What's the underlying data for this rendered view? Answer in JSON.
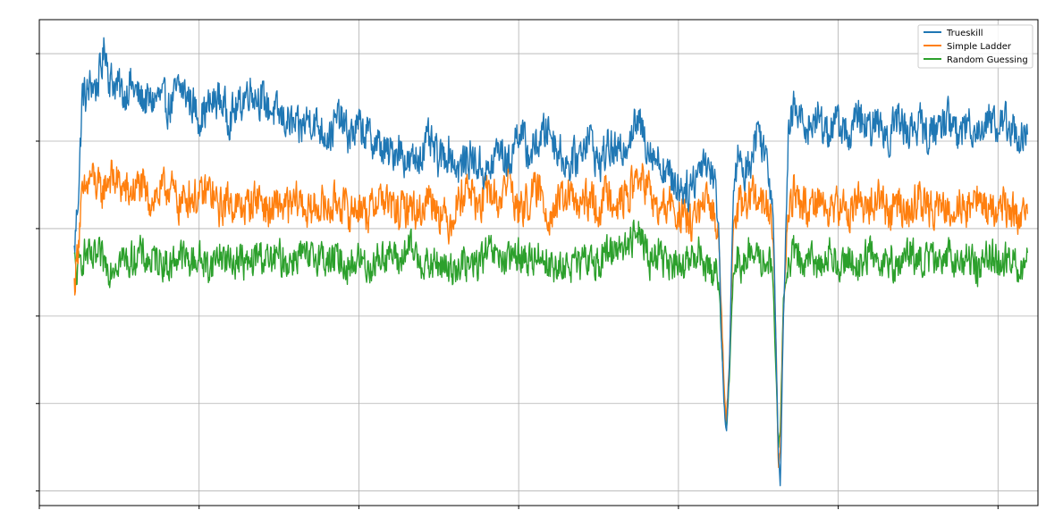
{
  "chart_data": {
    "type": "line",
    "title": "",
    "xlabel": "",
    "ylabel": "",
    "xlim": [
      0,
      1000
    ],
    "ylim": [
      0,
      100
    ],
    "grid": true,
    "legend_position": "top-right",
    "x_ticks": [
      0,
      160,
      320,
      480,
      640,
      800,
      960
    ],
    "y_ticks": [
      3,
      21,
      39,
      57,
      75,
      93
    ],
    "series": [
      {
        "name": "Trueskill",
        "color": "#1f77b4",
        "points": [
          [
            35,
            52
          ],
          [
            40,
            68
          ],
          [
            43,
            85
          ],
          [
            47,
            84
          ],
          [
            52,
            87
          ],
          [
            57,
            86
          ],
          [
            62,
            90
          ],
          [
            66,
            95
          ],
          [
            70,
            88
          ],
          [
            75,
            87
          ],
          [
            80,
            86
          ],
          [
            85,
            84
          ],
          [
            90,
            87
          ],
          [
            100,
            84
          ],
          [
            110,
            83
          ],
          [
            120,
            84
          ],
          [
            130,
            82
          ],
          [
            140,
            86
          ],
          [
            150,
            84
          ],
          [
            160,
            80
          ],
          [
            170,
            82
          ],
          [
            180,
            84
          ],
          [
            190,
            80
          ],
          [
            200,
            82
          ],
          [
            210,
            86
          ],
          [
            220,
            84
          ],
          [
            230,
            82
          ],
          [
            240,
            80
          ],
          [
            250,
            79
          ],
          [
            260,
            77
          ],
          [
            270,
            80
          ],
          [
            280,
            78
          ],
          [
            290,
            76
          ],
          [
            300,
            80
          ],
          [
            310,
            76
          ],
          [
            320,
            78
          ],
          [
            330,
            76
          ],
          [
            340,
            74
          ],
          [
            350,
            72
          ],
          [
            360,
            74
          ],
          [
            370,
            70
          ],
          [
            380,
            72
          ],
          [
            390,
            75
          ],
          [
            400,
            71
          ],
          [
            410,
            73
          ],
          [
            420,
            69
          ],
          [
            430,
            72
          ],
          [
            440,
            70
          ],
          [
            450,
            68
          ],
          [
            460,
            74
          ],
          [
            470,
            70
          ],
          [
            480,
            78
          ],
          [
            490,
            72
          ],
          [
            500,
            75
          ],
          [
            510,
            78
          ],
          [
            520,
            73
          ],
          [
            530,
            70
          ],
          [
            540,
            72
          ],
          [
            550,
            77
          ],
          [
            560,
            70
          ],
          [
            570,
            74
          ],
          [
            580,
            72
          ],
          [
            590,
            76
          ],
          [
            600,
            79
          ],
          [
            610,
            74
          ],
          [
            620,
            71
          ],
          [
            630,
            68
          ],
          [
            640,
            66
          ],
          [
            650,
            65
          ],
          [
            660,
            69
          ],
          [
            665,
            72
          ],
          [
            675,
            68
          ],
          [
            680,
            60
          ],
          [
            683,
            35
          ],
          [
            686,
            20
          ],
          [
            688,
            15
          ],
          [
            691,
            28
          ],
          [
            695,
            65
          ],
          [
            700,
            72
          ],
          [
            705,
            68
          ],
          [
            710,
            70
          ],
          [
            720,
            78
          ],
          [
            730,
            70
          ],
          [
            735,
            60
          ],
          [
            738,
            30
          ],
          [
            740,
            10
          ],
          [
            742,
            5
          ],
          [
            745,
            38
          ],
          [
            750,
            75
          ],
          [
            755,
            82
          ],
          [
            760,
            80
          ],
          [
            770,
            78
          ],
          [
            780,
            80
          ],
          [
            790,
            77
          ],
          [
            800,
            79
          ],
          [
            810,
            76
          ],
          [
            820,
            80
          ],
          [
            830,
            77
          ],
          [
            840,
            79
          ],
          [
            850,
            76
          ],
          [
            860,
            80
          ],
          [
            870,
            77
          ],
          [
            880,
            79
          ],
          [
            890,
            76
          ],
          [
            900,
            78
          ],
          [
            910,
            80
          ],
          [
            920,
            76
          ],
          [
            930,
            79
          ],
          [
            940,
            77
          ],
          [
            950,
            80
          ],
          [
            960,
            78
          ],
          [
            970,
            79
          ],
          [
            980,
            76
          ],
          [
            990,
            75
          ]
        ]
      },
      {
        "name": "Simple Ladder",
        "color": "#ff7f0e",
        "points": [
          [
            35,
            45
          ],
          [
            38,
            52
          ],
          [
            42,
            62
          ],
          [
            47,
            65
          ],
          [
            52,
            68
          ],
          [
            57,
            66
          ],
          [
            62,
            64
          ],
          [
            70,
            68
          ],
          [
            80,
            66
          ],
          [
            90,
            64
          ],
          [
            100,
            66
          ],
          [
            110,
            63
          ],
          [
            120,
            64
          ],
          [
            130,
            66
          ],
          [
            140,
            62
          ],
          [
            150,
            64
          ],
          [
            160,
            63
          ],
          [
            170,
            65
          ],
          [
            180,
            61
          ],
          [
            190,
            63
          ],
          [
            200,
            61
          ],
          [
            210,
            62
          ],
          [
            220,
            64
          ],
          [
            230,
            60
          ],
          [
            240,
            62
          ],
          [
            250,
            61
          ],
          [
            260,
            63
          ],
          [
            270,
            60
          ],
          [
            280,
            62
          ],
          [
            290,
            61
          ],
          [
            300,
            63
          ],
          [
            310,
            60
          ],
          [
            320,
            62
          ],
          [
            330,
            60
          ],
          [
            340,
            64
          ],
          [
            350,
            62
          ],
          [
            360,
            60
          ],
          [
            370,
            62
          ],
          [
            380,
            60
          ],
          [
            390,
            64
          ],
          [
            400,
            61
          ],
          [
            410,
            58
          ],
          [
            420,
            63
          ],
          [
            430,
            66
          ],
          [
            440,
            61
          ],
          [
            450,
            65
          ],
          [
            460,
            62
          ],
          [
            470,
            68
          ],
          [
            480,
            60
          ],
          [
            490,
            63
          ],
          [
            500,
            65
          ],
          [
            510,
            60
          ],
          [
            520,
            62
          ],
          [
            530,
            64
          ],
          [
            540,
            61
          ],
          [
            550,
            63
          ],
          [
            560,
            61
          ],
          [
            570,
            65
          ],
          [
            580,
            62
          ],
          [
            590,
            64
          ],
          [
            600,
            68
          ],
          [
            610,
            65
          ],
          [
            620,
            60
          ],
          [
            630,
            62
          ],
          [
            640,
            60
          ],
          [
            650,
            58
          ],
          [
            660,
            60
          ],
          [
            670,
            62
          ],
          [
            680,
            58
          ],
          [
            683,
            40
          ],
          [
            686,
            24
          ],
          [
            688,
            18
          ],
          [
            691,
            30
          ],
          [
            695,
            58
          ],
          [
            700,
            62
          ],
          [
            705,
            60
          ],
          [
            710,
            64
          ],
          [
            720,
            63
          ],
          [
            730,
            61
          ],
          [
            735,
            55
          ],
          [
            738,
            30
          ],
          [
            740,
            8
          ],
          [
            742,
            10
          ],
          [
            745,
            40
          ],
          [
            750,
            60
          ],
          [
            755,
            65
          ],
          [
            760,
            63
          ],
          [
            770,
            61
          ],
          [
            780,
            64
          ],
          [
            790,
            60
          ],
          [
            800,
            62
          ],
          [
            810,
            60
          ],
          [
            820,
            63
          ],
          [
            830,
            61
          ],
          [
            840,
            64
          ],
          [
            850,
            60
          ],
          [
            860,
            62
          ],
          [
            870,
            60
          ],
          [
            880,
            63
          ],
          [
            890,
            61
          ],
          [
            900,
            62
          ],
          [
            910,
            60
          ],
          [
            920,
            63
          ],
          [
            930,
            61
          ],
          [
            940,
            64
          ],
          [
            950,
            60
          ],
          [
            960,
            62
          ],
          [
            970,
            61
          ],
          [
            980,
            60
          ],
          [
            990,
            58
          ]
        ]
      },
      {
        "name": "Random Guessing",
        "color": "#2ca02c",
        "points": [
          [
            35,
            50
          ],
          [
            38,
            47
          ],
          [
            42,
            51
          ],
          [
            47,
            52
          ],
          [
            52,
            50
          ],
          [
            60,
            51
          ],
          [
            70,
            49
          ],
          [
            80,
            51
          ],
          [
            90,
            50
          ],
          [
            100,
            52
          ],
          [
            110,
            50
          ],
          [
            120,
            51
          ],
          [
            130,
            49
          ],
          [
            140,
            52
          ],
          [
            150,
            50
          ],
          [
            160,
            51
          ],
          [
            170,
            49
          ],
          [
            180,
            52
          ],
          [
            190,
            50
          ],
          [
            200,
            51
          ],
          [
            210,
            49
          ],
          [
            220,
            52
          ],
          [
            230,
            50
          ],
          [
            240,
            51
          ],
          [
            250,
            50
          ],
          [
            260,
            52
          ],
          [
            270,
            50
          ],
          [
            280,
            52
          ],
          [
            290,
            50
          ],
          [
            300,
            51
          ],
          [
            310,
            49
          ],
          [
            320,
            51
          ],
          [
            330,
            49
          ],
          [
            340,
            51
          ],
          [
            350,
            52
          ],
          [
            360,
            50
          ],
          [
            370,
            53
          ],
          [
            380,
            51
          ],
          [
            390,
            49
          ],
          [
            400,
            50
          ],
          [
            410,
            48
          ],
          [
            420,
            50
          ],
          [
            430,
            49
          ],
          [
            440,
            50
          ],
          [
            450,
            52
          ],
          [
            460,
            51
          ],
          [
            470,
            50
          ],
          [
            480,
            52
          ],
          [
            490,
            50
          ],
          [
            500,
            52
          ],
          [
            510,
            50
          ],
          [
            520,
            48
          ],
          [
            530,
            50
          ],
          [
            540,
            49
          ],
          [
            550,
            51
          ],
          [
            560,
            50
          ],
          [
            570,
            52
          ],
          [
            580,
            54
          ],
          [
            590,
            53
          ],
          [
            600,
            58
          ],
          [
            605,
            55
          ],
          [
            610,
            50
          ],
          [
            620,
            52
          ],
          [
            630,
            50
          ],
          [
            640,
            48
          ],
          [
            650,
            50
          ],
          [
            660,
            52
          ],
          [
            670,
            49
          ],
          [
            680,
            48
          ],
          [
            683,
            35
          ],
          [
            686,
            22
          ],
          [
            688,
            15
          ],
          [
            691,
            26
          ],
          [
            695,
            48
          ],
          [
            700,
            51
          ],
          [
            705,
            49
          ],
          [
            710,
            52
          ],
          [
            720,
            50
          ],
          [
            730,
            51
          ],
          [
            735,
            45
          ],
          [
            738,
            25
          ],
          [
            740,
            12
          ],
          [
            742,
            15
          ],
          [
            745,
            42
          ],
          [
            750,
            50
          ],
          [
            755,
            52
          ],
          [
            760,
            50
          ],
          [
            770,
            51
          ],
          [
            780,
            49
          ],
          [
            790,
            52
          ],
          [
            800,
            50
          ],
          [
            810,
            51
          ],
          [
            820,
            49
          ],
          [
            830,
            52
          ],
          [
            840,
            50
          ],
          [
            850,
            51
          ],
          [
            860,
            49
          ],
          [
            870,
            52
          ],
          [
            880,
            50
          ],
          [
            890,
            51
          ],
          [
            900,
            49
          ],
          [
            910,
            52
          ],
          [
            920,
            50
          ],
          [
            930,
            51
          ],
          [
            940,
            49
          ],
          [
            950,
            52
          ],
          [
            960,
            50
          ],
          [
            970,
            51
          ],
          [
            980,
            49
          ],
          [
            990,
            50
          ]
        ]
      }
    ]
  }
}
